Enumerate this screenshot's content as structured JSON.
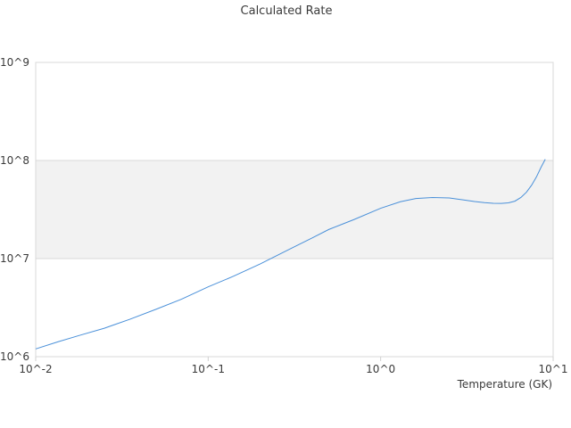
{
  "chart_data": {
    "type": "line",
    "title": "Calculated Rate",
    "xlabel": "Temperature (GK)",
    "ylabel": "",
    "x_scale": "log",
    "y_scale": "log",
    "xlim": [
      0.01,
      10
    ],
    "ylim": [
      1000000,
      1000000000
    ],
    "x_ticks": [
      {
        "value": 0.01,
        "label": "10^-2"
      },
      {
        "value": 0.1,
        "label": "10^-1"
      },
      {
        "value": 1,
        "label": "10^0"
      },
      {
        "value": 10,
        "label": "10^1"
      }
    ],
    "y_ticks": [
      {
        "value": 1000000,
        "label": "10^6"
      },
      {
        "value": 10000000,
        "label": "10^7"
      },
      {
        "value": 100000000,
        "label": "10^8"
      },
      {
        "value": 1000000000,
        "label": "10^9"
      }
    ],
    "band_color": "#f2f2f2",
    "line_color": "#4a90d9",
    "grid": true,
    "legend": "none",
    "series": [
      {
        "x": [
          0.01,
          0.0135,
          0.018,
          0.025,
          0.035,
          0.05,
          0.07,
          0.1,
          0.14,
          0.2,
          0.3,
          0.4,
          0.5,
          0.7,
          1.0,
          1.3,
          1.6,
          2.0,
          2.5,
          3.0,
          3.5,
          4.0,
          4.5,
          5.0,
          5.5,
          6.0,
          6.5,
          7.0,
          7.5,
          8.0,
          8.5,
          9.0
        ],
        "y": [
          1200000,
          1420000,
          1650000,
          1950000,
          2400000,
          3050000,
          3850000,
          5150000,
          6600000,
          8800000,
          12600000,
          16200000,
          19800000,
          25000000,
          32600000,
          38000000,
          41000000,
          42000000,
          41500000,
          39700000,
          38200000,
          37200000,
          36600000,
          36500000,
          37000000,
          38500000,
          42000000,
          47500000,
          56000000,
          68000000,
          85000000,
          103000000
        ]
      }
    ]
  }
}
